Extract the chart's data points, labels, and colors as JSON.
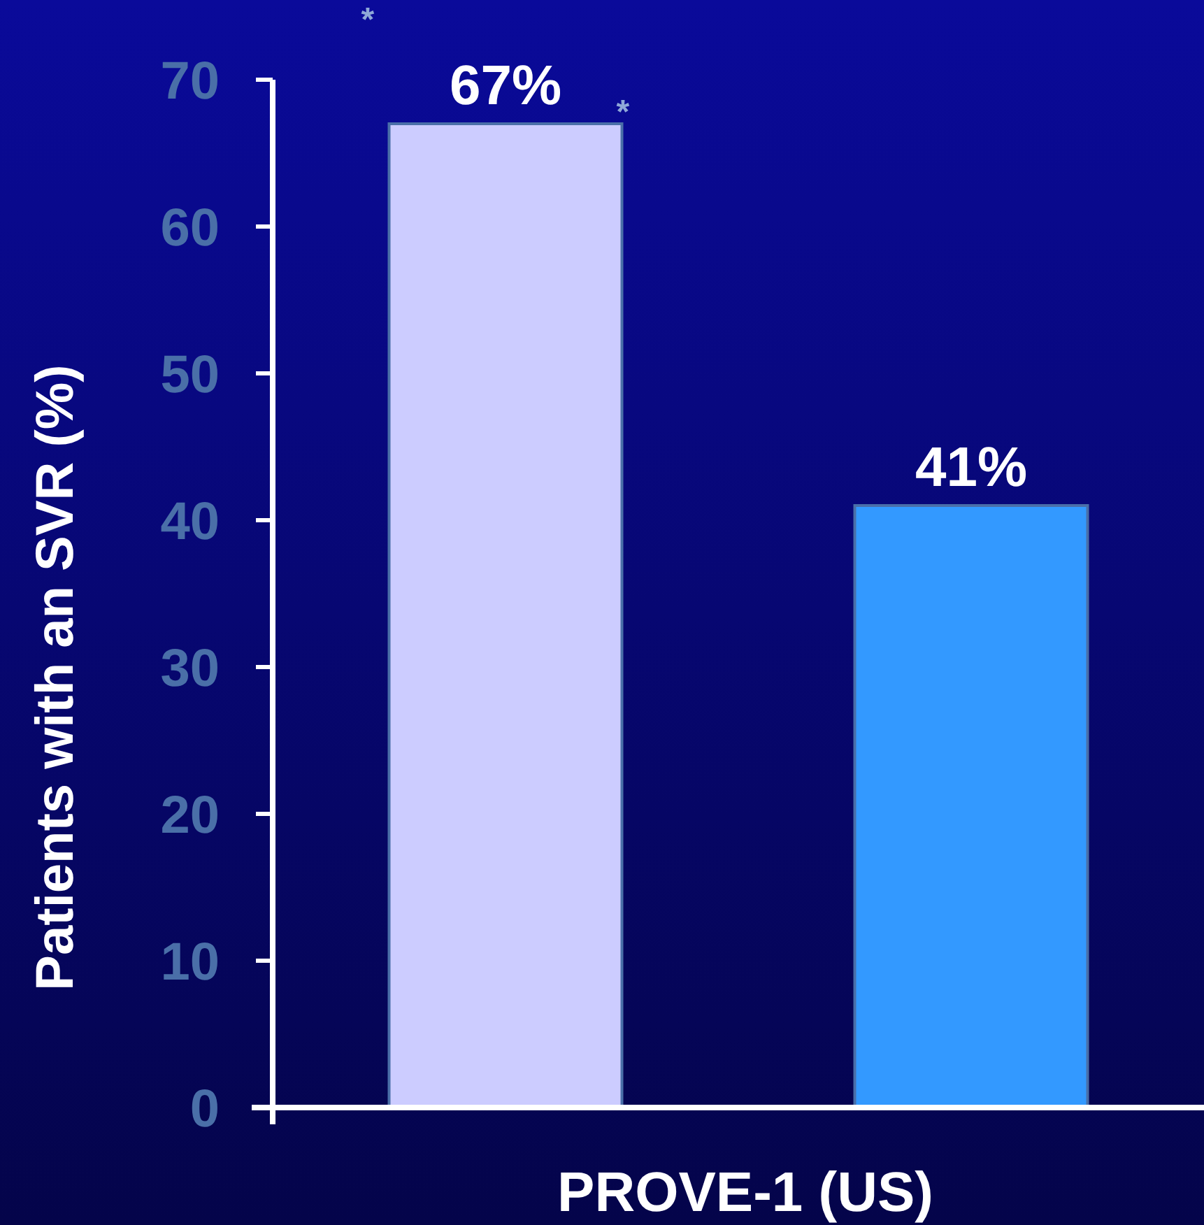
{
  "chart_data": {
    "type": "bar",
    "xlabel": "PROVE-1 (US)",
    "ylabel": "Patients with an SVR (%)",
    "categories": [
      null,
      null
    ],
    "values": [
      67,
      41
    ],
    "colors": [
      "#ccccff",
      "#3399ff"
    ],
    "value_labels": [
      "67%",
      "41%"
    ],
    "ylim": [
      0,
      70
    ],
    "yticks": [
      0,
      10,
      20,
      30,
      40,
      50,
      60,
      70
    ],
    "annotations": [
      "*",
      "*"
    ]
  }
}
